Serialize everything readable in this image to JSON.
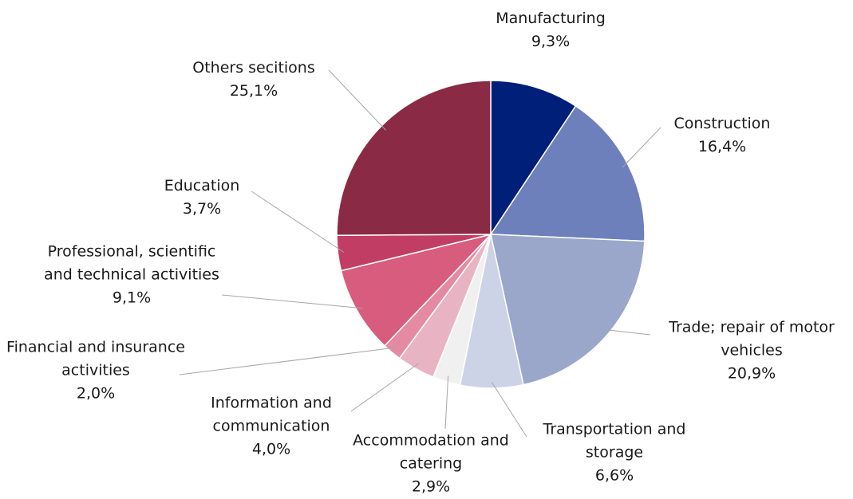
{
  "chart_data": {
    "type": "pie",
    "categories": [
      "Manufacturing",
      "Construction",
      "Trade; repair of motor vehicles",
      "Transportation and storage",
      "Accommodation and catering",
      "Information and communication",
      "Financial and insurance activities",
      "Professional, scientific and technical activities",
      "Education",
      "Others secitions"
    ],
    "values": [
      9.3,
      16.4,
      20.9,
      6.6,
      2.9,
      4.0,
      2.0,
      9.1,
      3.7,
      25.1
    ],
    "value_labels": [
      "9,3%",
      "16,4%",
      "20,9%",
      "6,6%",
      "2,9%",
      "4,0%",
      "2,0%",
      "9,1%",
      "3,7%",
      "25,1%"
    ],
    "colors": [
      "#001f78",
      "#6e80bb",
      "#9aa7cb",
      "#cdd3e7",
      "#f0f0f0",
      "#e8b4c4",
      "#e58aa3",
      "#d85c7e",
      "#c23d64",
      "#8b2a45"
    ]
  }
}
